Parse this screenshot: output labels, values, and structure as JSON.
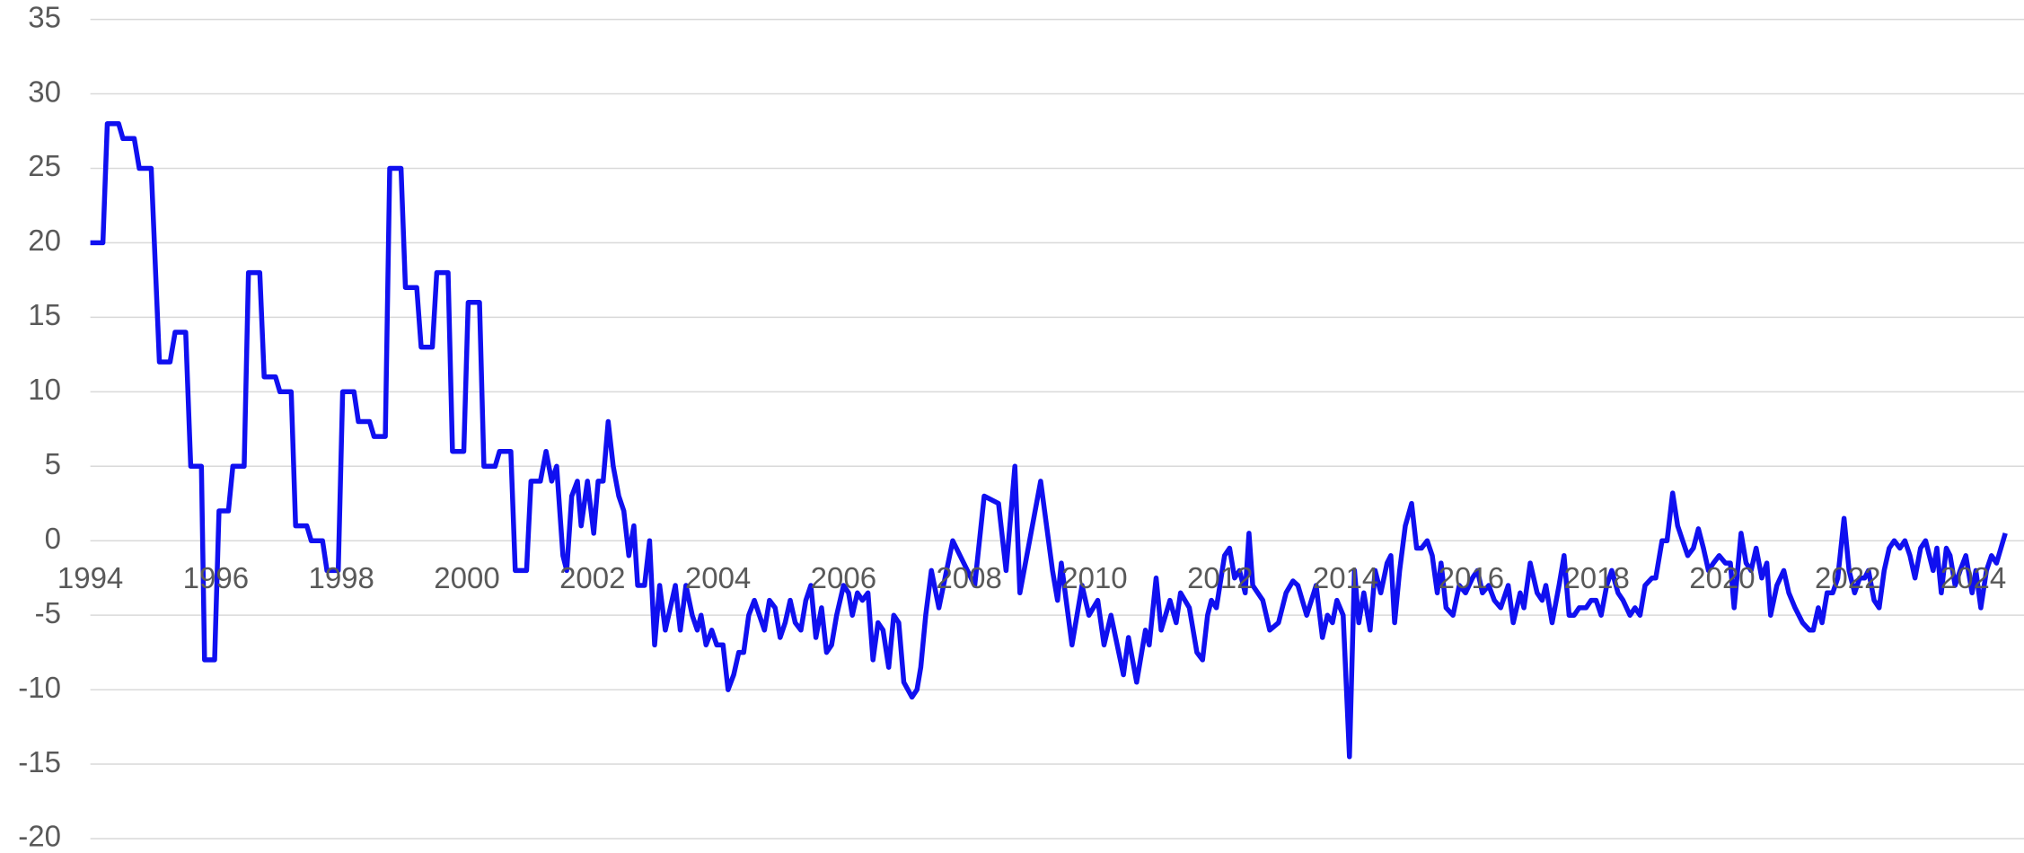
{
  "chart_data": {
    "type": "line",
    "color": "#1010f0",
    "grid": true,
    "xlim": [
      1994,
      2024.55
    ],
    "xticks": [
      1994,
      1996,
      1998,
      2000,
      2002,
      2004,
      2006,
      2008,
      2010,
      2012,
      2014,
      2016,
      2018,
      2020,
      2022,
      2024
    ],
    "ylim": [
      -20,
      35
    ],
    "yticks": [
      -20,
      -15,
      -10,
      -5,
      0,
      5,
      10,
      15,
      20,
      25,
      30,
      35
    ],
    "x": [
      1994,
      1994.2,
      1994.27,
      1994.45,
      1994.52,
      1994.7,
      1994.78,
      1994.97,
      1995.1,
      1995.27,
      1995.35,
      1995.52,
      1995.6,
      1995.77,
      1995.82,
      1995.98,
      1996.05,
      1996.2,
      1996.27,
      1996.45,
      1996.52,
      1996.7,
      1996.77,
      1996.95,
      1997.02,
      1997.2,
      1997.27,
      1997.45,
      1997.52,
      1997.7,
      1997.77,
      1997.95,
      1998.02,
      1998.2,
      1998.27,
      1998.45,
      1998.52,
      1998.7,
      1998.77,
      1998.95,
      1999.02,
      1999.2,
      1999.27,
      1999.45,
      1999.52,
      1999.7,
      1999.77,
      1999.95,
      2000.02,
      2000.2,
      2000.27,
      2000.45,
      2000.52,
      2000.7,
      2000.77,
      2000.95,
      2001.02,
      2001.17,
      2001.26,
      2001.35,
      2001.43,
      2001.53,
      2001.59,
      2001.67,
      2001.76,
      2001.82,
      2001.92,
      2002.02,
      2002.09,
      2002.17,
      2002.25,
      2002.33,
      2002.42,
      2002.5,
      2002.58,
      2002.66,
      2002.72,
      2002.83,
      2002.91,
      2002.99,
      2003.07,
      2003.16,
      2003.32,
      2003.4,
      2003.49,
      2003.59,
      2003.67,
      2003.73,
      2003.81,
      2003.9,
      2003.98,
      2004.08,
      2004.16,
      2004.25,
      2004.33,
      2004.41,
      2004.49,
      2004.58,
      2004.66,
      2004.74,
      2004.82,
      2004.91,
      2004.99,
      2005.07,
      2005.15,
      2005.23,
      2005.32,
      2005.4,
      2005.48,
      2005.56,
      2005.65,
      2005.73,
      2005.81,
      2005.89,
      2006,
      2006.08,
      2006.14,
      2006.22,
      2006.3,
      2006.39,
      2006.47,
      2006.55,
      2006.63,
      2006.72,
      2006.8,
      2006.88,
      2006.96,
      2007.09,
      2007.17,
      2007.23,
      2007.31,
      2007.4,
      2007.52,
      2007.74,
      2008.09,
      2008.24,
      2008.47,
      2008.59,
      2008.73,
      2008.81,
      2009.14,
      2009.33,
      2009.41,
      2009.47,
      2009.64,
      2009.8,
      2009.91,
      2010.05,
      2010.15,
      2010.26,
      2010.46,
      2010.54,
      2010.67,
      2010.81,
      2010.87,
      2010.98,
      2011.06,
      2011.2,
      2011.3,
      2011.37,
      2011.51,
      2011.63,
      2011.72,
      2011.8,
      2011.86,
      2011.94,
      2012.07,
      2012.15,
      2012.23,
      2012.31,
      2012.4,
      2012.46,
      2012.52,
      2012.68,
      2012.79,
      2012.93,
      2013.05,
      2013.16,
      2013.24,
      2013.38,
      2013.53,
      2013.63,
      2013.71,
      2013.79,
      2013.86,
      2013.96,
      2014.06,
      2014.14,
      2014.21,
      2014.29,
      2014.39,
      2014.47,
      2014.56,
      2014.66,
      2014.72,
      2014.78,
      2014.86,
      2014.95,
      2015.05,
      2015.13,
      2015.21,
      2015.3,
      2015.38,
      2015.46,
      2015.52,
      2015.6,
      2015.71,
      2015.81,
      2015.91,
      2016.02,
      2016.1,
      2016.18,
      2016.28,
      2016.37,
      2016.47,
      2016.59,
      2016.67,
      2016.78,
      2016.84,
      2016.94,
      2017.05,
      2017.13,
      2017.19,
      2017.29,
      2017.4,
      2017.48,
      2017.56,
      2017.64,
      2017.72,
      2017.83,
      2017.91,
      2017.99,
      2018.07,
      2018.16,
      2018.24,
      2018.34,
      2018.42,
      2018.53,
      2018.61,
      2018.69,
      2018.77,
      2018.88,
      2018.94,
      2019.04,
      2019.12,
      2019.21,
      2019.29,
      2019.37,
      2019.45,
      2019.54,
      2019.62,
      2019.7,
      2019.78,
      2019.86,
      2019.95,
      2020.05,
      2020.13,
      2020.19,
      2020.3,
      2020.38,
      2020.46,
      2020.54,
      2020.63,
      2020.71,
      2020.77,
      2020.87,
      2020.98,
      2021.06,
      2021.16,
      2021.28,
      2021.39,
      2021.45,
      2021.53,
      2021.59,
      2021.67,
      2021.76,
      2021.84,
      2021.94,
      2022.02,
      2022.11,
      2022.19,
      2022.27,
      2022.33,
      2022.42,
      2022.5,
      2022.58,
      2022.66,
      2022.74,
      2022.83,
      2022.91,
      2022.99,
      2023.07,
      2023.16,
      2023.24,
      2023.3,
      2023.36,
      2023.42,
      2023.49,
      2023.57,
      2023.63,
      2023.71,
      2023.79,
      2023.88,
      2023.98,
      2024.04,
      2024.12,
      2024.21,
      2024.29,
      2024.37,
      2024.51
    ],
    "values": [
      20,
      20,
      28,
      28,
      27,
      27,
      25,
      25,
      12,
      12,
      14,
      14,
      5,
      5,
      -8,
      -8,
      2,
      2,
      5,
      5,
      18,
      18,
      11,
      11,
      10,
      10,
      1,
      1,
      0,
      0,
      -2,
      -2,
      10,
      10,
      8,
      8,
      7,
      7,
      25,
      25,
      17,
      17,
      13,
      13,
      18,
      18,
      6,
      6,
      16,
      16,
      5,
      5,
      6,
      6,
      -2,
      -2,
      4,
      4,
      6,
      4,
      5,
      -1,
      -2,
      3,
      4,
      1,
      4,
      0.5,
      4,
      4,
      8,
      5,
      3,
      2,
      -1,
      1,
      -3,
      -3,
      0,
      -7,
      -3,
      -6,
      -3,
      -6,
      -3,
      -5,
      -6,
      -5,
      -7,
      -6,
      -7,
      -7,
      -10,
      -9,
      -7.5,
      -7.5,
      -5,
      -4,
      -5,
      -6,
      -4,
      -4.5,
      -6.5,
      -5.5,
      -4,
      -5.5,
      -6,
      -4,
      -3,
      -6.5,
      -4.5,
      -7.5,
      -7,
      -5,
      -3,
      -3.5,
      -5,
      -3.5,
      -4,
      -3.5,
      -8,
      -5.5,
      -6,
      -8.5,
      -5,
      -5.5,
      -9.5,
      -10.5,
      -10,
      -8.5,
      -5,
      -2,
      -4.5,
      0,
      -3,
      3,
      2.5,
      -2,
      5,
      -3.5,
      4,
      -2,
      -4,
      -1.5,
      -7,
      -3,
      -5,
      -4,
      -7,
      -5,
      -9,
      -6.5,
      -9.5,
      -6,
      -7,
      -2.5,
      -6,
      -4,
      -5.5,
      -3.5,
      -4.5,
      -7.5,
      -8,
      -5,
      -4,
      -4.5,
      -1,
      -0.5,
      -2.5,
      -2,
      -3.5,
      0.5,
      -3,
      -4,
      -6,
      -5.5,
      -3.5,
      -2.7,
      -3,
      -5,
      -3,
      -6.5,
      -5,
      -5.5,
      -4,
      -5,
      -14.5,
      -2,
      -5.5,
      -3.5,
      -6,
      -2,
      -3.5,
      -1.5,
      -1,
      -5.5,
      -2,
      1,
      2.5,
      -0.5,
      -0.5,
      0,
      -1,
      -3.5,
      -1.5,
      -4.5,
      -5,
      -3,
      -3.5,
      -2.5,
      -2,
      -3.5,
      -3,
      -4,
      -4.5,
      -3,
      -5.5,
      -3.5,
      -4.5,
      -1.5,
      -3.5,
      -4,
      -3,
      -5.5,
      -3,
      -1,
      -5,
      -5,
      -4.5,
      -4.5,
      -4,
      -4,
      -5,
      -3,
      -2,
      -3.5,
      -4,
      -5,
      -4.5,
      -5,
      -3,
      -2.5,
      -2.5,
      0,
      0,
      3.2,
      1,
      0,
      -1,
      -0.5,
      0.8,
      -0.5,
      -2,
      -1.5,
      -1,
      -1.5,
      -1.5,
      -4.5,
      0.5,
      -1.5,
      -2,
      -0.5,
      -2.5,
      -1.5,
      -5,
      -3,
      -2,
      -3.5,
      -4.5,
      -5.5,
      -6,
      -6,
      -4.5,
      -5.5,
      -3.5,
      -3.5,
      -2.5,
      1.5,
      -2,
      -3.5,
      -2.5,
      -2.5,
      -2,
      -4,
      -4.5,
      -2,
      -0.5,
      0,
      -0.5,
      0,
      -1,
      -2.5,
      -0.5,
      0,
      -1,
      -2,
      -0.5,
      -3.5,
      -0.5,
      -1,
      -3,
      -2,
      -1,
      -3.5,
      -2,
      -4.5,
      -2,
      -1,
      -1.5,
      0.5
    ]
  }
}
